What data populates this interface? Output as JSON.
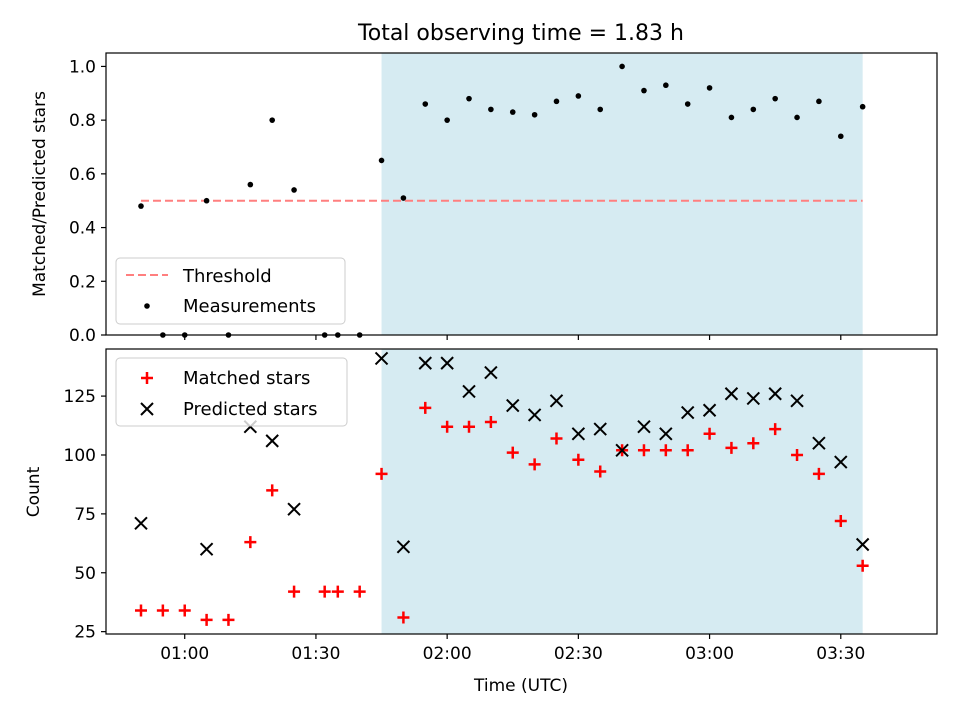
{
  "chart_data": [
    {
      "type": "scatter",
      "title": "Total observing time = 1.83 h",
      "xlabel": "",
      "ylabel": "Matched/Predicted stars",
      "ylim": [
        0,
        1.05
      ],
      "yticks": [
        0.0,
        0.2,
        0.4,
        0.6,
        0.8,
        1.0
      ],
      "ytick_labels": [
        "0.0",
        "0.2",
        "0.4",
        "0.6",
        "0.8",
        "1.0"
      ],
      "legend_placement": "lower-left",
      "threshold": {
        "name": "Threshold",
        "value": 0.5,
        "x_start": "00:50",
        "x_end": "03:35",
        "color": "#ff7f7f"
      },
      "shaded_region": {
        "x_start": "01:45",
        "x_end": "03:35",
        "color": "#add8e6"
      },
      "series": [
        {
          "name": "Measurements",
          "color": "#000000",
          "marker": "dot",
          "x": [
            "00:50",
            "00:55",
            "01:00",
            "01:05",
            "01:10",
            "01:15",
            "01:20",
            "01:25",
            "01:32",
            "01:35",
            "01:40",
            "01:45",
            "01:50",
            "01:55",
            "02:00",
            "02:05",
            "02:10",
            "02:15",
            "02:20",
            "02:25",
            "02:30",
            "02:35",
            "02:40",
            "02:45",
            "02:50",
            "02:55",
            "03:00",
            "03:05",
            "03:10",
            "03:15",
            "03:20",
            "03:25",
            "03:30",
            "03:35"
          ],
          "y": [
            0.48,
            0.0,
            0.0,
            0.5,
            0.0,
            0.56,
            0.8,
            0.54,
            0.0,
            0.0,
            0.0,
            0.65,
            0.51,
            0.86,
            0.8,
            0.88,
            0.84,
            0.83,
            0.82,
            0.87,
            0.89,
            0.84,
            1.0,
            0.91,
            0.93,
            0.86,
            0.92,
            0.81,
            0.84,
            0.88,
            0.81,
            0.87,
            0.74,
            0.85
          ]
        }
      ]
    },
    {
      "type": "scatter",
      "title": "",
      "xlabel": "Time (UTC)",
      "ylabel": "Count",
      "ylim": [
        24,
        145
      ],
      "yticks": [
        25,
        50,
        75,
        100,
        125
      ],
      "ytick_labels": [
        "25",
        "50",
        "75",
        "100",
        "125"
      ],
      "xlim": [
        "00:42",
        "03:52"
      ],
      "xticks": [
        "01:00",
        "01:30",
        "02:00",
        "02:30",
        "03:00",
        "03:30"
      ],
      "legend_placement": "upper-left",
      "shaded_region": {
        "x_start": "01:45",
        "x_end": "03:35",
        "color": "#add8e6"
      },
      "series": [
        {
          "name": "Matched stars",
          "color": "#ff0000",
          "marker": "plus",
          "x": [
            "00:50",
            "00:55",
            "01:00",
            "01:05",
            "01:10",
            "01:15",
            "01:20",
            "01:25",
            "01:32",
            "01:35",
            "01:40",
            "01:45",
            "01:50",
            "01:55",
            "02:00",
            "02:05",
            "02:10",
            "02:15",
            "02:20",
            "02:25",
            "02:30",
            "02:35",
            "02:40",
            "02:45",
            "02:50",
            "02:55",
            "03:00",
            "03:05",
            "03:10",
            "03:15",
            "03:20",
            "03:25",
            "03:30",
            "03:35"
          ],
          "y": [
            34,
            34,
            34,
            30,
            30,
            63,
            85,
            42,
            42,
            42,
            42,
            92,
            31,
            120,
            112,
            112,
            114,
            101,
            96,
            107,
            98,
            93,
            102,
            102,
            102,
            102,
            109,
            103,
            105,
            111,
            100,
            92,
            72,
            53
          ]
        },
        {
          "name": "Predicted stars",
          "color": "#000000",
          "marker": "x",
          "x": [
            "00:50",
            "01:05",
            "01:15",
            "01:20",
            "01:25",
            "01:45",
            "01:50",
            "01:55",
            "02:00",
            "02:05",
            "02:10",
            "02:15",
            "02:20",
            "02:25",
            "02:30",
            "02:35",
            "02:40",
            "02:45",
            "02:50",
            "02:55",
            "03:00",
            "03:05",
            "03:10",
            "03:15",
            "03:20",
            "03:25",
            "03:30",
            "03:35"
          ],
          "y": [
            71,
            60,
            112,
            106,
            77,
            141,
            61,
            139,
            139,
            127,
            135,
            121,
            117,
            123,
            109,
            111,
            102,
            112,
            109,
            118,
            119,
            126,
            124,
            126,
            123,
            105,
            97,
            62
          ]
        }
      ]
    }
  ]
}
